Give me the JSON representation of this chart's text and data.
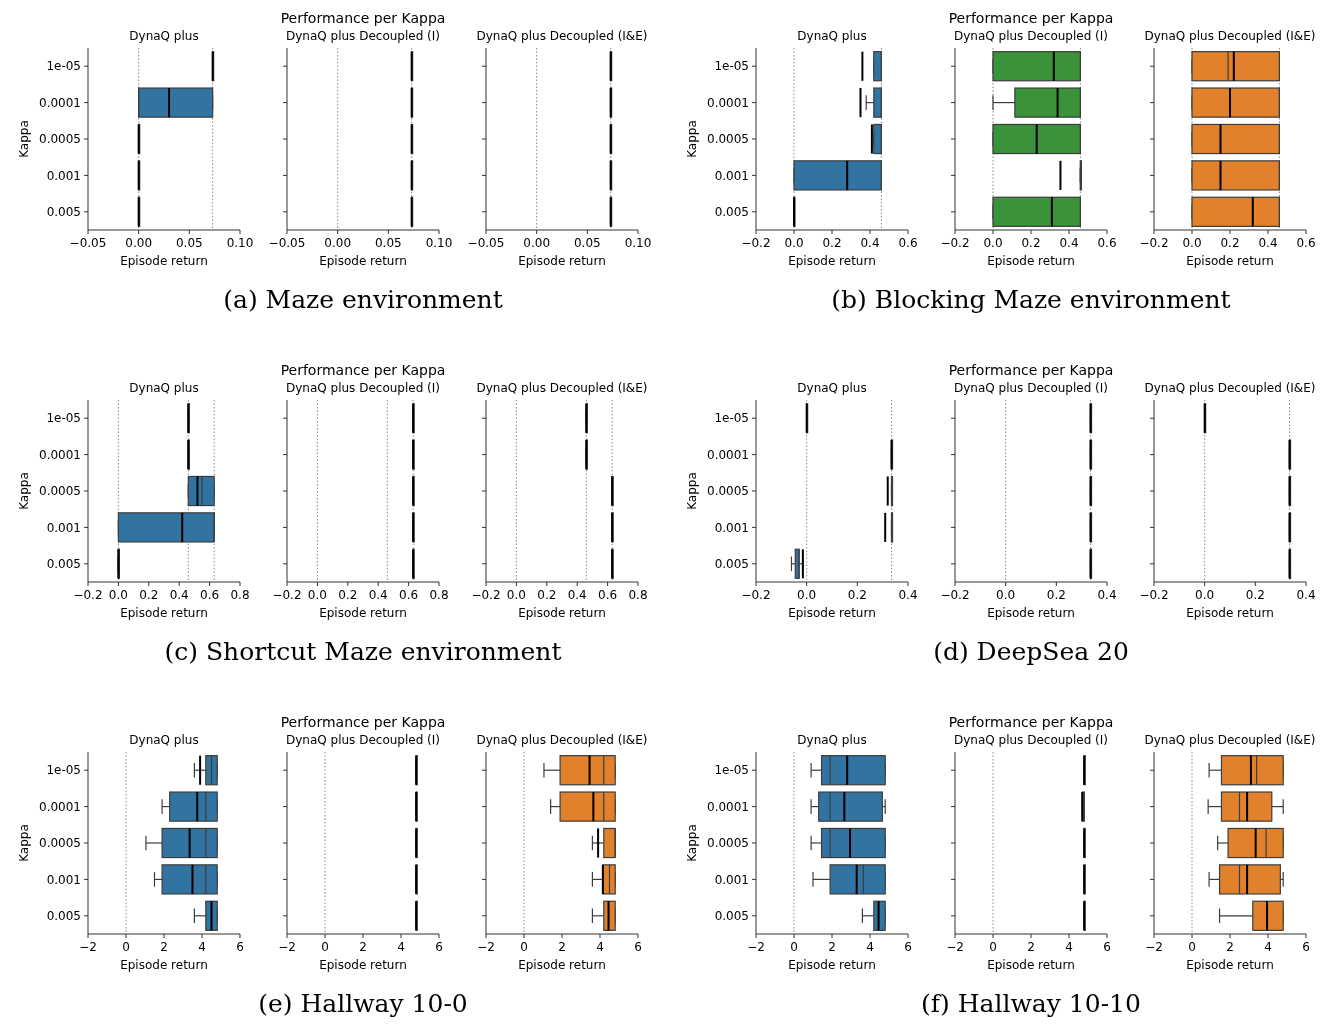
{
  "chart_data": [
    {
      "type": "box",
      "orientation": "horizontal",
      "title": "DynaQ plus",
      "xlabel": "Episode return",
      "ylabel": "Kappa",
      "categories": [
        "1e-05",
        "0.0001",
        "0.0005",
        "0.001",
        "0.005"
      ],
      "color": "#3274a1",
      "xlim": [
        -0.05,
        0.1
      ],
      "xticks": [
        {
          "value": -0.05,
          "label": "−0.05"
        },
        {
          "value": 0,
          "label": "0.00"
        },
        {
          "value": 0.05,
          "label": "0.05"
        },
        {
          "value": 0.1,
          "label": "0.10"
        }
      ],
      "boxes": [
        {
          "low": 0.073,
          "q1": 0.073,
          "median": 0.073,
          "q3": 0.073,
          "high": 0.073,
          "mean": 0.073
        },
        {
          "low": 0,
          "q1": 0,
          "median": 0,
          "q3": 0.073,
          "high": 0.073,
          "mean": 0.03
        },
        {
          "low": 0,
          "q1": 0,
          "median": 0,
          "q3": 0,
          "high": 0,
          "mean": 0
        },
        {
          "low": 0,
          "q1": 0,
          "median": 0,
          "q3": 0,
          "high": 0,
          "mean": 0
        },
        {
          "low": 0,
          "q1": 0,
          "median": 0,
          "q3": 0,
          "high": 0,
          "mean": 0
        }
      ],
      "ref_lines": [
        {
          "axis": "x",
          "value": 0,
          "line_style": "dotted"
        },
        {
          "axis": "x",
          "value": 0.073,
          "line_style": "dotted"
        }
      ]
    },
    {
      "type": "box",
      "orientation": "horizontal",
      "title": "DynaQ plus Decoupled (I)",
      "xlabel": "Episode return",
      "categories": [
        "1e-05",
        "0.0001",
        "0.0005",
        "0.001",
        "0.005"
      ],
      "color": "#3a923a",
      "xlim": [
        -0.05,
        0.1
      ],
      "xticks": [
        {
          "value": -0.05,
          "label": "−0.05"
        },
        {
          "value": 0,
          "label": "0.00"
        },
        {
          "value": 0.05,
          "label": "0.05"
        },
        {
          "value": 0.1,
          "label": "0.10"
        }
      ],
      "tick_labels": "x",
      "boxes": [
        {
          "low": 0.073,
          "q1": 0.073,
          "median": 0.073,
          "q3": 0.073,
          "high": 0.073,
          "mean": 0.073
        },
        {
          "low": 0.073,
          "q1": 0.073,
          "median": 0.073,
          "q3": 0.073,
          "high": 0.073,
          "mean": 0.073
        },
        {
          "low": 0.073,
          "q1": 0.073,
          "median": 0.073,
          "q3": 0.073,
          "high": 0.073,
          "mean": 0.073
        },
        {
          "low": 0.073,
          "q1": 0.073,
          "median": 0.073,
          "q3": 0.073,
          "high": 0.073,
          "mean": 0.073
        },
        {
          "low": 0.073,
          "q1": 0.073,
          "median": 0.073,
          "q3": 0.073,
          "high": 0.073,
          "mean": 0.073
        }
      ],
      "ref_lines": [
        {
          "axis": "x",
          "value": 0,
          "line_style": "dotted"
        },
        {
          "axis": "x",
          "value": 0.073,
          "line_style": "dotted"
        }
      ],
      "annotations": [
        "Performance per Kappa",
        "(a) Maze environment"
      ]
    },
    {
      "type": "box",
      "orientation": "horizontal",
      "title": "DynaQ plus Decoupled (I&E)",
      "xlabel": "Episode return",
      "categories": [
        "1e-05",
        "0.0001",
        "0.0005",
        "0.001",
        "0.005"
      ],
      "color": "#e1812c",
      "xlim": [
        -0.05,
        0.1
      ],
      "xticks": [
        {
          "value": -0.05,
          "label": "−0.05"
        },
        {
          "value": 0,
          "label": "0.00"
        },
        {
          "value": 0.05,
          "label": "0.05"
        },
        {
          "value": 0.1,
          "label": "0.10"
        }
      ],
      "tick_labels": "x",
      "boxes": [
        {
          "low": 0.073,
          "q1": 0.073,
          "median": 0.073,
          "q3": 0.073,
          "high": 0.073,
          "mean": 0.073
        },
        {
          "low": 0.073,
          "q1": 0.073,
          "median": 0.073,
          "q3": 0.073,
          "high": 0.073,
          "mean": 0.073
        },
        {
          "low": 0.073,
          "q1": 0.073,
          "median": 0.073,
          "q3": 0.073,
          "high": 0.073,
          "mean": 0.073
        },
        {
          "low": 0.073,
          "q1": 0.073,
          "median": 0.073,
          "q3": 0.073,
          "high": 0.073,
          "mean": 0.073
        },
        {
          "low": 0.073,
          "q1": 0.073,
          "median": 0.073,
          "q3": 0.073,
          "high": 0.073,
          "mean": 0.073
        }
      ],
      "ref_lines": [
        {
          "axis": "x",
          "value": 0,
          "line_style": "dotted"
        },
        {
          "axis": "x",
          "value": 0.073,
          "line_style": "dotted"
        }
      ]
    },
    {
      "type": "box",
      "orientation": "horizontal",
      "title": "DynaQ plus",
      "xlabel": "Episode return",
      "ylabel": "Kappa",
      "categories": [
        "1e-05",
        "0.0001",
        "0.0005",
        "0.001",
        "0.005"
      ],
      "color": "#3274a1",
      "xlim": [
        -0.2,
        0.6
      ],
      "xticks": [
        {
          "value": -0.2,
          "label": "−0.2"
        },
        {
          "value": 0,
          "label": "0.0"
        },
        0.2,
        0.4,
        0.6
      ],
      "boxes": [
        {
          "low": 0.42,
          "q1": 0.42,
          "median": 0.46,
          "q3": 0.46,
          "high": 0.46,
          "mean": 0.36
        },
        {
          "low": 0.38,
          "q1": 0.42,
          "median": 0.46,
          "q3": 0.46,
          "high": 0.46,
          "mean": 0.35
        },
        {
          "low": 0.42,
          "q1": 0.42,
          "median": 0.46,
          "q3": 0.46,
          "high": 0.46,
          "mean": 0.41
        },
        {
          "low": 0,
          "q1": 0,
          "median": 0.46,
          "q3": 0.46,
          "high": 0.46,
          "mean": 0.28
        },
        {
          "low": 0,
          "q1": 0,
          "median": 0,
          "q3": 0,
          "high": 0,
          "mean": 0
        }
      ],
      "ref_lines": [
        {
          "axis": "x",
          "value": 0,
          "line_style": "dotted"
        },
        {
          "axis": "x",
          "value": 0.46,
          "line_style": "dotted"
        }
      ]
    },
    {
      "type": "box",
      "orientation": "horizontal",
      "title": "DynaQ plus Decoupled (I)",
      "xlabel": "Episode return",
      "categories": [
        "1e-05",
        "0.0001",
        "0.0005",
        "0.001",
        "0.005"
      ],
      "color": "#3a923a",
      "xlim": [
        -0.2,
        0.6
      ],
      "xticks": [
        {
          "value": -0.2,
          "label": "−0.2"
        },
        {
          "value": 0,
          "label": "0.0"
        },
        0.2,
        0.4,
        0.6
      ],
      "tick_labels": "x",
      "boxes": [
        {
          "low": 0,
          "q1": 0,
          "median": 0.46,
          "q3": 0.46,
          "high": 0.46,
          "mean": 0.32
        },
        {
          "low": 0,
          "q1": 0.115,
          "median": 0.46,
          "q3": 0.46,
          "high": 0.46,
          "mean": 0.34
        },
        {
          "low": 0,
          "q1": 0,
          "median": 0.46,
          "q3": 0.46,
          "high": 0.46,
          "mean": 0.23
        },
        {
          "low": 0.46,
          "q1": 0.46,
          "median": 0.46,
          "q3": 0.46,
          "high": 0.46,
          "mean": 0.355
        },
        {
          "low": 0,
          "q1": 0,
          "median": 0.46,
          "q3": 0.46,
          "high": 0.46,
          "mean": 0.31
        }
      ],
      "ref_lines": [
        {
          "axis": "x",
          "value": 0,
          "line_style": "dotted"
        },
        {
          "axis": "x",
          "value": 0.46,
          "line_style": "dotted"
        }
      ],
      "annotations": [
        "Performance per Kappa",
        "(b) Blocking Maze environment"
      ]
    },
    {
      "type": "box",
      "orientation": "horizontal",
      "title": "DynaQ plus Decoupled (I&E)",
      "xlabel": "Episode return",
      "categories": [
        "1e-05",
        "0.0001",
        "0.0005",
        "0.001",
        "0.005"
      ],
      "color": "#e1812c",
      "xlim": [
        -0.2,
        0.6
      ],
      "xticks": [
        {
          "value": -0.2,
          "label": "−0.2"
        },
        {
          "value": 0,
          "label": "0.0"
        },
        0.2,
        0.4,
        0.6
      ],
      "tick_labels": "x",
      "boxes": [
        {
          "low": 0,
          "q1": 0,
          "median": 0.19,
          "q3": 0.46,
          "high": 0.46,
          "mean": 0.22
        },
        {
          "low": 0,
          "q1": 0,
          "median": 0.46,
          "q3": 0.46,
          "high": 0.46,
          "mean": 0.2
        },
        {
          "low": 0,
          "q1": 0,
          "median": 0.46,
          "q3": 0.46,
          "high": 0.46,
          "mean": 0.15
        },
        {
          "low": 0,
          "q1": 0,
          "median": 0.46,
          "q3": 0.46,
          "high": 0.46,
          "mean": 0.15
        },
        {
          "low": 0,
          "q1": 0,
          "median": 0.46,
          "q3": 0.46,
          "high": 0.46,
          "mean": 0.32
        }
      ],
      "ref_lines": [
        {
          "axis": "x",
          "value": 0,
          "line_style": "dotted"
        },
        {
          "axis": "x",
          "value": 0.46,
          "line_style": "dotted"
        }
      ]
    },
    {
      "type": "box",
      "orientation": "horizontal",
      "title": "DynaQ plus",
      "xlabel": "Episode return",
      "ylabel": "Kappa",
      "categories": [
        "1e-05",
        "0.0001",
        "0.0005",
        "0.001",
        "0.005"
      ],
      "color": "#3274a1",
      "xlim": [
        -0.2,
        0.8
      ],
      "xticks": [
        {
          "value": -0.2,
          "label": "−0.2"
        },
        {
          "value": 0,
          "label": "0.0"
        },
        0.2,
        0.4,
        0.6,
        0.8
      ],
      "boxes": [
        {
          "low": 0.46,
          "q1": 0.46,
          "median": 0.46,
          "q3": 0.46,
          "high": 0.46,
          "mean": 0.46
        },
        {
          "low": 0.46,
          "q1": 0.46,
          "median": 0.46,
          "q3": 0.46,
          "high": 0.46,
          "mean": 0.46
        },
        {
          "low": 0.46,
          "q1": 0.46,
          "median": 0.55,
          "q3": 0.63,
          "high": 0.63,
          "mean": 0.52
        },
        {
          "low": 0,
          "q1": 0,
          "median": 0.63,
          "q3": 0.63,
          "high": 0.63,
          "mean": 0.42
        },
        {
          "low": 0,
          "q1": 0,
          "median": 0,
          "q3": 0,
          "high": 0,
          "mean": 0
        }
      ],
      "ref_lines": [
        {
          "axis": "x",
          "value": 0,
          "line_style": "dotted"
        },
        {
          "axis": "x",
          "value": 0.46,
          "line_style": "dotted"
        },
        {
          "axis": "x",
          "value": 0.63,
          "line_style": "dotted"
        }
      ]
    },
    {
      "type": "box",
      "orientation": "horizontal",
      "title": "DynaQ plus Decoupled (I)",
      "xlabel": "Episode return",
      "categories": [
        "1e-05",
        "0.0001",
        "0.0005",
        "0.001",
        "0.005"
      ],
      "color": "#3a923a",
      "xlim": [
        -0.2,
        0.8
      ],
      "xticks": [
        {
          "value": -0.2,
          "label": "−0.2"
        },
        {
          "value": 0,
          "label": "0.0"
        },
        0.2,
        0.4,
        0.6,
        0.8
      ],
      "tick_labels": "x",
      "boxes": [
        {
          "low": 0.63,
          "q1": 0.63,
          "median": 0.63,
          "q3": 0.63,
          "high": 0.63,
          "mean": 0.63
        },
        {
          "low": 0.63,
          "q1": 0.63,
          "median": 0.63,
          "q3": 0.63,
          "high": 0.63,
          "mean": 0.63
        },
        {
          "low": 0.63,
          "q1": 0.63,
          "median": 0.63,
          "q3": 0.63,
          "high": 0.63,
          "mean": 0.63
        },
        {
          "low": 0.63,
          "q1": 0.63,
          "median": 0.63,
          "q3": 0.63,
          "high": 0.63,
          "mean": 0.63
        },
        {
          "low": 0.63,
          "q1": 0.63,
          "median": 0.63,
          "q3": 0.63,
          "high": 0.63,
          "mean": 0.63
        }
      ],
      "ref_lines": [
        {
          "axis": "x",
          "value": 0,
          "line_style": "dotted"
        },
        {
          "axis": "x",
          "value": 0.46,
          "line_style": "dotted"
        },
        {
          "axis": "x",
          "value": 0.63,
          "line_style": "dotted"
        }
      ],
      "annotations": [
        "Performance per Kappa",
        "(c) Shortcut Maze environment"
      ]
    },
    {
      "type": "box",
      "orientation": "horizontal",
      "title": "DynaQ plus Decoupled (I&E)",
      "xlabel": "Episode return",
      "categories": [
        "1e-05",
        "0.0001",
        "0.0005",
        "0.001",
        "0.005"
      ],
      "color": "#e1812c",
      "xlim": [
        -0.2,
        0.8
      ],
      "xticks": [
        {
          "value": -0.2,
          "label": "−0.2"
        },
        {
          "value": 0,
          "label": "0.0"
        },
        0.2,
        0.4,
        0.6,
        0.8
      ],
      "tick_labels": "x",
      "boxes": [
        {
          "low": 0.46,
          "q1": 0.46,
          "median": 0.46,
          "q3": 0.46,
          "high": 0.46,
          "mean": 0.46
        },
        {
          "low": 0.46,
          "q1": 0.46,
          "median": 0.46,
          "q3": 0.46,
          "high": 0.46,
          "mean": 0.46
        },
        {
          "low": 0.63,
          "q1": 0.63,
          "median": 0.63,
          "q3": 0.63,
          "high": 0.63,
          "mean": 0.63
        },
        {
          "low": 0.63,
          "q1": 0.63,
          "median": 0.63,
          "q3": 0.63,
          "high": 0.63,
          "mean": 0.63
        },
        {
          "low": 0.63,
          "q1": 0.63,
          "median": 0.63,
          "q3": 0.63,
          "high": 0.63,
          "mean": 0.63
        }
      ],
      "ref_lines": [
        {
          "axis": "x",
          "value": 0,
          "line_style": "dotted"
        },
        {
          "axis": "x",
          "value": 0.46,
          "line_style": "dotted"
        },
        {
          "axis": "x",
          "value": 0.63,
          "line_style": "dotted"
        }
      ]
    },
    {
      "type": "box",
      "orientation": "horizontal",
      "title": "DynaQ plus",
      "xlabel": "Episode return",
      "ylabel": "Kappa",
      "categories": [
        "1e-05",
        "0.0001",
        "0.0005",
        "0.001",
        "0.005"
      ],
      "color": "#3274a1",
      "xlim": [
        -0.2,
        0.4
      ],
      "xticks": [
        {
          "value": -0.2,
          "label": "−0.2"
        },
        {
          "value": 0,
          "label": "0.0"
        },
        0.2,
        0.4
      ],
      "boxes": [
        {
          "low": 0,
          "q1": 0,
          "median": 0,
          "q3": 0,
          "high": 0,
          "mean": 0
        },
        {
          "low": 0.335,
          "q1": 0.335,
          "median": 0.335,
          "q3": 0.335,
          "high": 0.335,
          "mean": 0.335
        },
        {
          "low": 0.335,
          "q1": 0.335,
          "median": 0.335,
          "q3": 0.335,
          "high": 0.335,
          "mean": 0.32
        },
        {
          "low": 0.335,
          "q1": 0.335,
          "median": 0.335,
          "q3": 0.335,
          "high": 0.335,
          "mean": 0.31
        },
        {
          "low": -0.06,
          "q1": -0.045,
          "median": -0.03,
          "q3": -0.03,
          "high": -0.015,
          "mean": -0.015
        }
      ],
      "ref_lines": [
        {
          "axis": "x",
          "value": 0,
          "line_style": "dotted"
        },
        {
          "axis": "x",
          "value": 0.335,
          "line_style": "dotted"
        }
      ]
    },
    {
      "type": "box",
      "orientation": "horizontal",
      "title": "DynaQ plus Decoupled (I)",
      "xlabel": "Episode return",
      "categories": [
        "1e-05",
        "0.0001",
        "0.0005",
        "0.001",
        "0.005"
      ],
      "color": "#3a923a",
      "xlim": [
        -0.2,
        0.4
      ],
      "xticks": [
        {
          "value": -0.2,
          "label": "−0.2"
        },
        {
          "value": 0,
          "label": "0.0"
        },
        0.2,
        0.4
      ],
      "tick_labels": "x",
      "boxes": [
        {
          "low": 0.335,
          "q1": 0.335,
          "median": 0.335,
          "q3": 0.335,
          "high": 0.335,
          "mean": 0.335
        },
        {
          "low": 0.335,
          "q1": 0.335,
          "median": 0.335,
          "q3": 0.335,
          "high": 0.335,
          "mean": 0.335
        },
        {
          "low": 0.335,
          "q1": 0.335,
          "median": 0.335,
          "q3": 0.335,
          "high": 0.335,
          "mean": 0.335
        },
        {
          "low": 0.335,
          "q1": 0.335,
          "median": 0.335,
          "q3": 0.335,
          "high": 0.335,
          "mean": 0.335
        },
        {
          "low": 0.335,
          "q1": 0.335,
          "median": 0.335,
          "q3": 0.335,
          "high": 0.335,
          "mean": 0.335
        }
      ],
      "ref_lines": [
        {
          "axis": "x",
          "value": 0,
          "line_style": "dotted"
        },
        {
          "axis": "x",
          "value": 0.335,
          "line_style": "dotted"
        }
      ],
      "annotations": [
        "Performance per Kappa",
        "(d) DeepSea 20"
      ]
    },
    {
      "type": "box",
      "orientation": "horizontal",
      "title": "DynaQ plus Decoupled (I&E)",
      "xlabel": "Episode return",
      "categories": [
        "1e-05",
        "0.0001",
        "0.0005",
        "0.001",
        "0.005"
      ],
      "color": "#e1812c",
      "xlim": [
        -0.2,
        0.4
      ],
      "xticks": [
        {
          "value": -0.2,
          "label": "−0.2"
        },
        {
          "value": 0,
          "label": "0.0"
        },
        0.2,
        0.4
      ],
      "tick_labels": "x",
      "boxes": [
        {
          "low": 0,
          "q1": 0,
          "median": 0,
          "q3": 0,
          "high": 0,
          "mean": 0
        },
        {
          "low": 0.335,
          "q1": 0.335,
          "median": 0.335,
          "q3": 0.335,
          "high": 0.335,
          "mean": 0.335
        },
        {
          "low": 0.335,
          "q1": 0.335,
          "median": 0.335,
          "q3": 0.335,
          "high": 0.335,
          "mean": 0.335
        },
        {
          "low": 0.335,
          "q1": 0.335,
          "median": 0.335,
          "q3": 0.335,
          "high": 0.335,
          "mean": 0.335
        },
        {
          "low": 0.335,
          "q1": 0.335,
          "median": 0.335,
          "q3": 0.335,
          "high": 0.335,
          "mean": 0.335
        }
      ],
      "ref_lines": [
        {
          "axis": "x",
          "value": 0,
          "line_style": "dotted"
        },
        {
          "axis": "x",
          "value": 0.335,
          "line_style": "dotted"
        }
      ]
    },
    {
      "type": "box",
      "orientation": "horizontal",
      "title": "DynaQ plus",
      "xlabel": "Episode return",
      "ylabel": "Kappa",
      "categories": [
        "1e-05",
        "0.0001",
        "0.0005",
        "0.001",
        "0.005"
      ],
      "color": "#3274a1",
      "xlim": [
        -2,
        6
      ],
      "xticks": [
        {
          "value": -2,
          "label": "−2"
        },
        0,
        2,
        4,
        6
      ],
      "boxes": [
        {
          "low": 3.6,
          "q1": 4.2,
          "median": 4.5,
          "q3": 4.8,
          "high": 4.8,
          "mean": 3.9
        },
        {
          "low": 1.9,
          "q1": 2.3,
          "median": 4.2,
          "q3": 4.8,
          "high": 4.8,
          "mean": 3.75
        },
        {
          "low": 1.05,
          "q1": 1.9,
          "median": 4.2,
          "q3": 4.8,
          "high": 4.8,
          "mean": 3.35
        },
        {
          "low": 1.5,
          "q1": 1.9,
          "median": 4.2,
          "q3": 4.8,
          "high": 4.8,
          "mean": 3.5
        },
        {
          "low": 3.6,
          "q1": 4.2,
          "median": 4.5,
          "q3": 4.8,
          "high": 4.8,
          "mean": 4.5
        }
      ],
      "ref_lines": [
        {
          "axis": "x",
          "value": 0,
          "line_style": "dotted"
        }
      ]
    },
    {
      "type": "box",
      "orientation": "horizontal",
      "title": "DynaQ plus Decoupled (I)",
      "xlabel": "Episode return",
      "categories": [
        "1e-05",
        "0.0001",
        "0.0005",
        "0.001",
        "0.005"
      ],
      "color": "#3a923a",
      "xlim": [
        -2,
        6
      ],
      "xticks": [
        {
          "value": -2,
          "label": "−2"
        },
        0,
        2,
        4,
        6
      ],
      "tick_labels": "x",
      "boxes": [
        {
          "low": 4.8,
          "q1": 4.8,
          "median": 4.8,
          "q3": 4.8,
          "high": 4.8,
          "mean": 4.8
        },
        {
          "low": 4.8,
          "q1": 4.8,
          "median": 4.8,
          "q3": 4.8,
          "high": 4.8,
          "mean": 4.8
        },
        {
          "low": 4.8,
          "q1": 4.8,
          "median": 4.8,
          "q3": 4.8,
          "high": 4.8,
          "mean": 4.8
        },
        {
          "low": 4.8,
          "q1": 4.8,
          "median": 4.8,
          "q3": 4.8,
          "high": 4.8,
          "mean": 4.8
        },
        {
          "low": 4.8,
          "q1": 4.8,
          "median": 4.8,
          "q3": 4.8,
          "high": 4.8,
          "mean": 4.8
        }
      ],
      "ref_lines": [
        {
          "axis": "x",
          "value": 0,
          "line_style": "dotted"
        }
      ],
      "annotations": [
        "Performance per Kappa",
        "(e) Hallway 10-0"
      ]
    },
    {
      "type": "box",
      "orientation": "horizontal",
      "title": "DynaQ plus Decoupled (I&E)",
      "xlabel": "Episode return",
      "categories": [
        "1e-05",
        "0.0001",
        "0.0005",
        "0.001",
        "0.005"
      ],
      "color": "#e1812c",
      "xlim": [
        -2,
        6
      ],
      "xticks": [
        {
          "value": -2,
          "label": "−2"
        },
        0,
        2,
        4,
        6
      ],
      "tick_labels": "x",
      "boxes": [
        {
          "low": 1.05,
          "q1": 1.9,
          "median": 4.2,
          "q3": 4.8,
          "high": 4.8,
          "mean": 3.45
        },
        {
          "low": 1.4,
          "q1": 1.9,
          "median": 4.2,
          "q3": 4.8,
          "high": 4.8,
          "mean": 3.65
        },
        {
          "low": 3.6,
          "q1": 4.2,
          "median": 4.8,
          "q3": 4.8,
          "high": 4.8,
          "mean": 3.9
        },
        {
          "low": 3.6,
          "q1": 4.15,
          "median": 4.5,
          "q3": 4.8,
          "high": 4.8,
          "mean": 4.15
        },
        {
          "low": 3.6,
          "q1": 4.2,
          "median": 4.45,
          "q3": 4.8,
          "high": 4.8,
          "mean": 4.45
        }
      ],
      "ref_lines": [
        {
          "axis": "x",
          "value": 0,
          "line_style": "dotted"
        }
      ]
    },
    {
      "type": "box",
      "orientation": "horizontal",
      "title": "DynaQ plus",
      "xlabel": "Episode return",
      "ylabel": "Kappa",
      "categories": [
        "1e-05",
        "0.0001",
        "0.0005",
        "0.001",
        "0.005"
      ],
      "color": "#3274a1",
      "xlim": [
        -2,
        6
      ],
      "xticks": [
        {
          "value": -2,
          "label": "−2"
        },
        0,
        2,
        4,
        6
      ],
      "boxes": [
        {
          "low": 0.9,
          "q1": 1.45,
          "median": 1.9,
          "q3": 4.8,
          "high": 4.8,
          "mean": 2.8
        },
        {
          "low": 0.9,
          "q1": 1.3,
          "median": 1.9,
          "q3": 4.65,
          "high": 4.8,
          "mean": 2.65
        },
        {
          "low": 0.9,
          "q1": 1.45,
          "median": 1.9,
          "q3": 4.8,
          "high": 4.8,
          "mean": 2.95
        },
        {
          "low": 1.0,
          "q1": 1.9,
          "median": 3.65,
          "q3": 4.8,
          "high": 4.8,
          "mean": 3.3
        },
        {
          "low": 3.6,
          "q1": 4.2,
          "median": 4.45,
          "q3": 4.8,
          "high": 4.8,
          "mean": 4.45
        }
      ],
      "ref_lines": [
        {
          "axis": "x",
          "value": 0,
          "line_style": "dotted"
        }
      ]
    },
    {
      "type": "box",
      "orientation": "horizontal",
      "title": "DynaQ plus Decoupled (I)",
      "xlabel": "Episode return",
      "categories": [
        "1e-05",
        "0.0001",
        "0.0005",
        "0.001",
        "0.005"
      ],
      "color": "#3a923a",
      "xlim": [
        -2,
        6
      ],
      "xticks": [
        {
          "value": -2,
          "label": "−2"
        },
        0,
        2,
        4,
        6
      ],
      "tick_labels": "x",
      "boxes": [
        {
          "low": 4.8,
          "q1": 4.8,
          "median": 4.8,
          "q3": 4.8,
          "high": 4.8,
          "mean": 4.8
        },
        {
          "low": 4.7,
          "q1": 4.7,
          "median": 4.8,
          "q3": 4.8,
          "high": 4.8,
          "mean": 4.7
        },
        {
          "low": 4.8,
          "q1": 4.8,
          "median": 4.8,
          "q3": 4.8,
          "high": 4.8,
          "mean": 4.8
        },
        {
          "low": 4.8,
          "q1": 4.8,
          "median": 4.8,
          "q3": 4.8,
          "high": 4.8,
          "mean": 4.8
        },
        {
          "low": 4.8,
          "q1": 4.8,
          "median": 4.8,
          "q3": 4.8,
          "high": 4.8,
          "mean": 4.8
        }
      ],
      "ref_lines": [
        {
          "axis": "x",
          "value": 0,
          "line_style": "dotted"
        }
      ],
      "annotations": [
        "Performance per Kappa",
        "(f) Hallway 10-10"
      ]
    },
    {
      "type": "box",
      "orientation": "horizontal",
      "title": "DynaQ plus Decoupled (I&E)",
      "xlabel": "Episode return",
      "categories": [
        "1e-05",
        "0.0001",
        "0.0005",
        "0.001",
        "0.005"
      ],
      "color": "#e1812c",
      "xlim": [
        -2,
        6
      ],
      "xticks": [
        {
          "value": -2,
          "label": "−2"
        },
        0,
        2,
        4,
        6
      ],
      "tick_labels": "x",
      "boxes": [
        {
          "low": 0.9,
          "q1": 1.55,
          "median": 3.4,
          "q3": 4.8,
          "high": 4.8,
          "mean": 3.1
        },
        {
          "low": 0.85,
          "q1": 1.55,
          "median": 2.5,
          "q3": 4.2,
          "high": 4.8,
          "mean": 2.9
        },
        {
          "low": 1.35,
          "q1": 1.9,
          "median": 3.9,
          "q3": 4.8,
          "high": 4.8,
          "mean": 3.35
        },
        {
          "low": 0.9,
          "q1": 1.45,
          "median": 2.5,
          "q3": 4.65,
          "high": 4.8,
          "mean": 2.9
        },
        {
          "low": 1.45,
          "q1": 3.2,
          "median": 3.95,
          "q3": 4.8,
          "high": 4.8,
          "mean": 3.95
        }
      ],
      "ref_lines": [
        {
          "axis": "x",
          "value": 0,
          "line_style": "dotted"
        }
      ]
    }
  ]
}
